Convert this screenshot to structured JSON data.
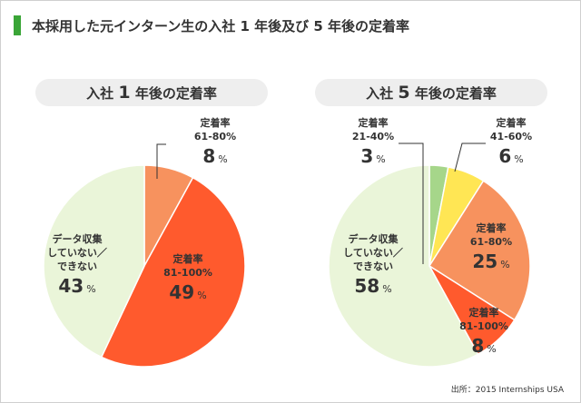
{
  "title": "本採用した元インターン生の入社 1 年後及び 5 年後の定着率",
  "source": "出所：2015 Internships USA",
  "chart_data": [
    {
      "type": "pie",
      "title_prefix": "入社",
      "title_number": "1",
      "title_suffix": "年後の定着率",
      "slices": [
        {
          "label_lines": [
            "定着率",
            "61-80%"
          ],
          "value": 8,
          "color": "#f7925e"
        },
        {
          "label_lines": [
            "定着率",
            "81-100%"
          ],
          "value": 49,
          "color": "#ff5a2d"
        },
        {
          "label_lines": [
            "データ収集",
            "していない／",
            "できない"
          ],
          "value": 43,
          "color": "#eaf5d9"
        }
      ]
    },
    {
      "type": "pie",
      "title_prefix": "入社",
      "title_number": "5",
      "title_suffix": "年後の定着率",
      "slices": [
        {
          "label_lines": [
            "定着率",
            "21-40%"
          ],
          "value": 3,
          "color": "#a6d68a"
        },
        {
          "label_lines": [
            "定着率",
            "41-60%"
          ],
          "value": 6,
          "color": "#ffe654"
        },
        {
          "label_lines": [
            "定着率",
            "61-80%"
          ],
          "value": 25,
          "color": "#f7925e"
        },
        {
          "label_lines": [
            "定着率",
            "81-100%"
          ],
          "value": 8,
          "color": "#ff5a2d"
        },
        {
          "label_lines": [
            "データ収集",
            "していない／",
            "できない"
          ],
          "value": 58,
          "color": "#eaf5d9"
        }
      ]
    }
  ],
  "value_suffix": "%",
  "colors": {
    "accent": "#3aa537",
    "text": "#333333",
    "pill_bg": "#eeeeee"
  }
}
